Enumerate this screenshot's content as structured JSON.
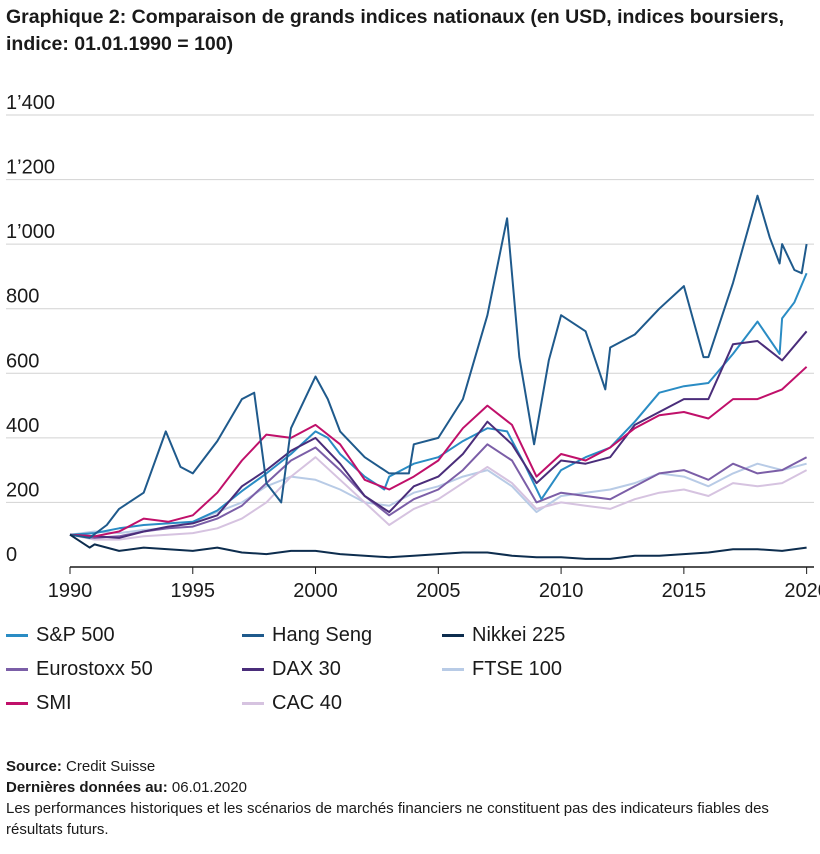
{
  "title": "Graphique 2: Comparaison de grands indices nationaux (en USD, indices boursiers, indice: 01.01.1990 = 100)",
  "footer": {
    "source_label": "Source:",
    "source_value": "Credit Suisse",
    "date_label": "Dernières données au:",
    "date_value": "06.01.2020",
    "disclaimer": "Les performances historiques et les scénarios de marchés financiers ne constituent pas des indicateurs fiables des résultats futurs."
  },
  "chart_data": {
    "type": "line",
    "title": "Graphique 2: Comparaison de grands indices nationaux (en USD, indices boursiers, indice: 01.01.1990 = 100)",
    "xlabel": "",
    "ylabel": "",
    "xlim": [
      1990,
      2020.3
    ],
    "ylim": [
      0,
      1400
    ],
    "x_ticks": [
      1990,
      1995,
      2000,
      2005,
      2010,
      2015,
      2020
    ],
    "x_tick_labels": [
      "1990",
      "1995",
      "2000",
      "2005",
      "2010",
      "2015",
      "2020"
    ],
    "y_ticks": [
      0,
      200,
      400,
      600,
      800,
      1000,
      1200,
      1400
    ],
    "y_tick_labels": [
      "0",
      "200",
      "400",
      "600",
      "800",
      "1’000",
      "1’200",
      "1’400"
    ],
    "grid": "horizontal",
    "legend_position": "bottom",
    "series": [
      {
        "name": "S&P 500",
        "color": "#2a8cc4",
        "x": [
          1990,
          1991,
          1992,
          1993,
          1994,
          1995,
          1996,
          1997,
          1998,
          1999,
          2000,
          2000.5,
          2001,
          2002,
          2002.8,
          2003,
          2004,
          2005,
          2006,
          2007,
          2007.8,
          2008.5,
          2009.2,
          2010,
          2011,
          2012,
          2013,
          2014,
          2015,
          2016,
          2017,
          2018,
          2018.9,
          2019,
          2019.5,
          2020
        ],
        "y": [
          100,
          105,
          120,
          130,
          135,
          140,
          175,
          235,
          290,
          350,
          420,
          400,
          350,
          280,
          240,
          280,
          320,
          340,
          390,
          430,
          420,
          320,
          210,
          300,
          340,
          370,
          450,
          540,
          560,
          570,
          660,
          760,
          660,
          770,
          820,
          910
        ]
      },
      {
        "name": "Hang Seng",
        "color": "#1f5a8c",
        "x": [
          1990,
          1990.8,
          1991.5,
          1992,
          1993,
          1993.9,
          1994.5,
          1995,
          1996,
          1997,
          1997.5,
          1998,
          1998.6,
          1999,
          2000,
          2000.5,
          2001,
          2002,
          2003,
          2003.8,
          2004,
          2005,
          2006,
          2007,
          2007.8,
          2008.3,
          2008.9,
          2009.5,
          2010,
          2011,
          2011.8,
          2012,
          2013,
          2014,
          2015,
          2015.8,
          2016,
          2017,
          2018,
          2018.5,
          2018.9,
          2019,
          2019.5,
          2019.8,
          2020
        ],
        "y": [
          100,
          90,
          130,
          180,
          230,
          420,
          310,
          290,
          390,
          520,
          540,
          260,
          200,
          430,
          590,
          520,
          420,
          340,
          290,
          290,
          380,
          400,
          520,
          780,
          1080,
          650,
          380,
          640,
          780,
          730,
          550,
          680,
          720,
          800,
          870,
          650,
          650,
          880,
          1150,
          1020,
          940,
          1000,
          920,
          910,
          1000
        ]
      },
      {
        "name": "Nikkei 225",
        "color": "#0d2d4e",
        "x": [
          1990,
          1990.8,
          1991,
          1992,
          1993,
          1994,
          1995,
          1996,
          1997,
          1998,
          1999,
          2000,
          2001,
          2002,
          2003,
          2004,
          2005,
          2006,
          2007,
          2008,
          2009,
          2010,
          2011,
          2012,
          2013,
          2014,
          2015,
          2016,
          2017,
          2018,
          2019,
          2020
        ],
        "y": [
          100,
          60,
          70,
          50,
          60,
          55,
          50,
          60,
          45,
          40,
          50,
          50,
          40,
          35,
          30,
          35,
          40,
          45,
          45,
          35,
          30,
          30,
          25,
          25,
          35,
          35,
          40,
          45,
          55,
          55,
          50,
          60
        ]
      },
      {
        "name": "Eurostoxx 50",
        "color": "#7b5ea7",
        "x": [
          1990,
          1991,
          1992,
          1993,
          1994,
          1995,
          1996,
          1997,
          1998,
          1999,
          2000,
          2001,
          2002,
          2003,
          2004,
          2005,
          2006,
          2007,
          2008,
          2009,
          2010,
          2011,
          2012,
          2013,
          2014,
          2015,
          2016,
          2017,
          2018,
          2019,
          2020
        ],
        "y": [
          100,
          90,
          95,
          110,
          120,
          125,
          150,
          190,
          260,
          330,
          370,
          300,
          220,
          160,
          210,
          240,
          300,
          380,
          330,
          200,
          230,
          220,
          210,
          250,
          290,
          300,
          270,
          320,
          290,
          300,
          340
        ]
      },
      {
        "name": "DAX 30",
        "color": "#4a2d7a",
        "x": [
          1990,
          1991,
          1992,
          1993,
          1994,
          1995,
          1996,
          1997,
          1998,
          1999,
          2000,
          2001,
          2002,
          2003,
          2004,
          2005,
          2006,
          2007,
          2008,
          2009,
          2010,
          2011,
          2012,
          2013,
          2014,
          2015,
          2016,
          2017,
          2018,
          2019,
          2020
        ],
        "y": [
          100,
          95,
          90,
          110,
          125,
          135,
          160,
          250,
          300,
          360,
          400,
          320,
          220,
          170,
          250,
          280,
          350,
          450,
          380,
          260,
          330,
          320,
          340,
          440,
          480,
          520,
          520,
          690,
          700,
          640,
          730
        ]
      },
      {
        "name": "FTSE 100",
        "color": "#b8cbe6",
        "x": [
          1990,
          1991,
          1992,
          1993,
          1994,
          1995,
          1996,
          1997,
          1998,
          1999,
          2000,
          2001,
          2002,
          2003,
          2004,
          2005,
          2006,
          2007,
          2008,
          2009,
          2010,
          2011,
          2012,
          2013,
          2014,
          2015,
          2016,
          2017,
          2018,
          2019,
          2020
        ],
        "y": [
          100,
          110,
          105,
          115,
          120,
          140,
          170,
          200,
          250,
          280,
          270,
          240,
          200,
          190,
          230,
          250,
          280,
          300,
          250,
          170,
          220,
          230,
          240,
          260,
          290,
          280,
          250,
          290,
          320,
          300,
          320
        ]
      },
      {
        "name": "SMI",
        "color": "#c0106a",
        "x": [
          1990,
          1991,
          1992,
          1993,
          1994,
          1995,
          1996,
          1997,
          1998,
          1999,
          2000,
          2001,
          2002,
          2003,
          2004,
          2005,
          2006,
          2007,
          2008,
          2009,
          2010,
          2011,
          2012,
          2013,
          2014,
          2015,
          2016,
          2017,
          2018,
          2019,
          2020
        ],
        "y": [
          100,
          95,
          110,
          150,
          140,
          160,
          230,
          330,
          410,
          400,
          440,
          380,
          270,
          240,
          280,
          330,
          430,
          500,
          440,
          280,
          350,
          330,
          370,
          430,
          470,
          480,
          460,
          520,
          520,
          550,
          620
        ]
      },
      {
        "name": "CAC 40",
        "color": "#d6c3e0",
        "x": [
          1990,
          1991,
          1992,
          1993,
          1994,
          1995,
          1996,
          1997,
          1998,
          1999,
          2000,
          2001,
          2002,
          2003,
          2004,
          2005,
          2006,
          2007,
          2008,
          2009,
          2010,
          2011,
          2012,
          2013,
          2014,
          2015,
          2016,
          2017,
          2018,
          2019,
          2020
        ],
        "y": [
          100,
          85,
          85,
          95,
          100,
          105,
          120,
          150,
          200,
          280,
          340,
          270,
          200,
          130,
          180,
          210,
          260,
          310,
          260,
          180,
          200,
          190,
          180,
          210,
          230,
          240,
          220,
          260,
          250,
          260,
          300
        ]
      }
    ]
  }
}
